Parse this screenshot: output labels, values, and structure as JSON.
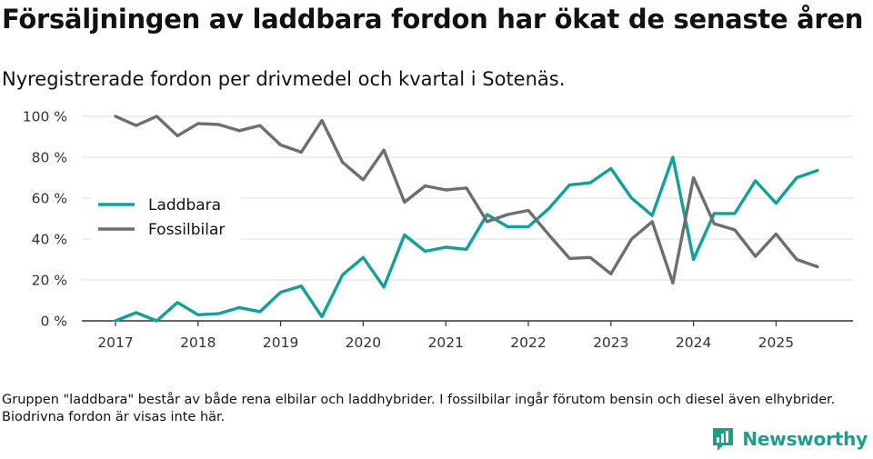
{
  "header": {
    "title": "Försäljningen av laddbara fordon har ökat de senaste åren",
    "subtitle": "Nyregistrerade fordon per drivmedel och kvartal i Sotenäs."
  },
  "footnote": "Gruppen \"laddbara\" består av både rena elbilar och laddhybrider. I fossilbilar ingår förutom bensin och diesel även elhybrider. Biodrivna fordon är visas inte här.",
  "brand": {
    "name": "Newsworthy",
    "icon": "newsworthy-logo-icon",
    "color": "#1e9d8b"
  },
  "chart_data": {
    "type": "line",
    "title": "Försäljningen av laddbara fordon har ökat de senaste åren",
    "subtitle": "Nyregistrerade fordon per drivmedel och kvartal i Sotenäs.",
    "xlabel": "",
    "ylabel": "",
    "ylim": [
      0,
      100
    ],
    "yticks": [
      0,
      20,
      40,
      60,
      80,
      100
    ],
    "ytick_labels": [
      "0 %",
      "20 %",
      "40 %",
      "60 %",
      "80 %",
      "100 %"
    ],
    "xlim": [
      2017,
      2025.92
    ],
    "xticks": [
      2017,
      2018,
      2019,
      2020,
      2021,
      2022,
      2023,
      2024,
      2025
    ],
    "xtick_labels": [
      "2017",
      "2018",
      "2019",
      "2020",
      "2021",
      "2022",
      "2023",
      "2024",
      "2025"
    ],
    "grid": true,
    "legend_position": "left-middle",
    "x": [
      2017,
      2017.25,
      2017.5,
      2017.75,
      2018,
      2018.25,
      2018.5,
      2018.75,
      2019,
      2019.25,
      2019.5,
      2019.75,
      2020,
      2020.25,
      2020.5,
      2020.75,
      2021,
      2021.25,
      2021.5,
      2021.75,
      2022,
      2022.25,
      2022.5,
      2022.75,
      2023,
      2023.25,
      2023.5,
      2023.75,
      2024,
      2024.25,
      2024.5,
      2024.75,
      2025,
      2025.25,
      2025.5
    ],
    "series": [
      {
        "name": "Laddbara",
        "color": "#12a197",
        "values": [
          0,
          4,
          0,
          9,
          3,
          3.5,
          6.5,
          4.5,
          14,
          17,
          2,
          22.5,
          31,
          16.5,
          42,
          34,
          36,
          35,
          52,
          46,
          46,
          55,
          66.5,
          67.5,
          74.5,
          60,
          51.5,
          80,
          30,
          52.5,
          52.5,
          68.5,
          57.5,
          70,
          73.5
        ]
      },
      {
        "name": "Fossilbilar",
        "color": "#6f6c72",
        "values": [
          100,
          95.5,
          100,
          90.5,
          96.5,
          96,
          93,
          95.5,
          86,
          82.5,
          98,
          77.5,
          69,
          83.5,
          58,
          66,
          64,
          65,
          48.5,
          52,
          54,
          42,
          30.5,
          31,
          23,
          40,
          48.5,
          18.5,
          70,
          47.5,
          44.5,
          31.5,
          42.5,
          30,
          26.5
        ]
      }
    ]
  }
}
